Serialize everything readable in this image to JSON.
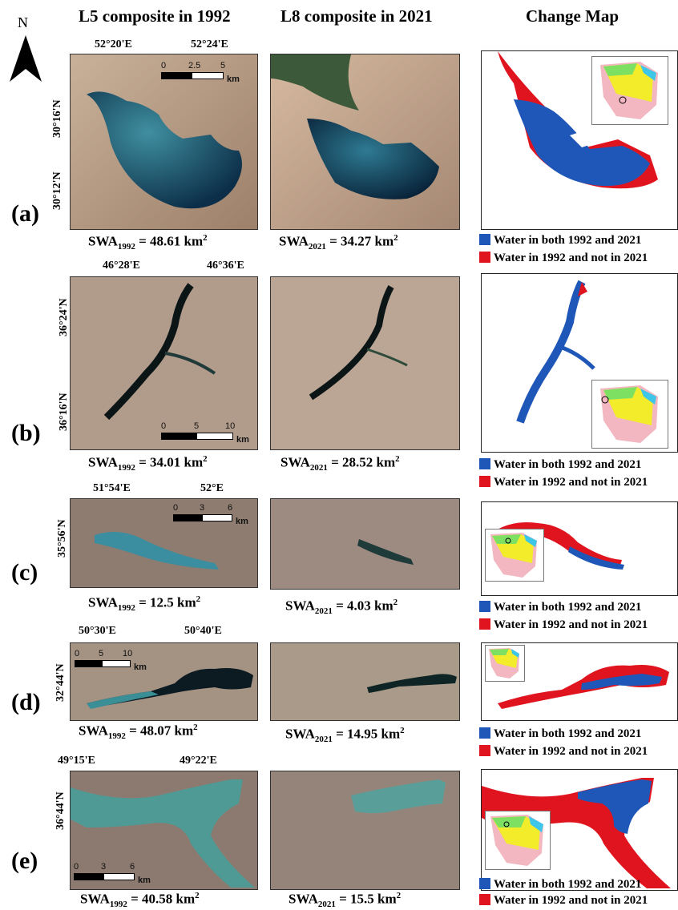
{
  "headers": {
    "col1": "L5 composite in 1992",
    "col2": "L8 composite in 2021",
    "col3": "Change Map"
  },
  "north": "N",
  "legend": {
    "both": "Water in both 1992 and 2021",
    "lost": "Water in 1992 and not in 2021"
  },
  "colors": {
    "both": "#1f57b8",
    "lost": "#e0141e"
  },
  "rows": [
    {
      "label": "(a)",
      "lon": [
        "52°20'E",
        "52°24'E"
      ],
      "lat": [
        "30°16'N",
        "30°12'N"
      ],
      "swa1992": {
        "prefix": "SWA",
        "sub": "1992",
        "val": " = 48.61 km",
        "sup": "2"
      },
      "swa2021": {
        "prefix": "SWA",
        "sub": "2021",
        "val": " = 34.27 km",
        "sup": "2"
      },
      "scale": [
        "0",
        "2.5",
        "5",
        "km"
      ]
    },
    {
      "label": "(b)",
      "lon": [
        "46°28'E",
        "46°36'E"
      ],
      "lat": [
        "36°24'N",
        "36°16'N"
      ],
      "swa1992": {
        "prefix": "SWA",
        "sub": "1992",
        "val": " = 34.01 km",
        "sup": "2"
      },
      "swa2021": {
        "prefix": "SWA",
        "sub": "2021",
        "val": " = 28.52 km",
        "sup": "2"
      },
      "scale": [
        "0",
        "5",
        "10",
        "km"
      ]
    },
    {
      "label": "(c)",
      "lon": [
        "51°54'E",
        "52°E"
      ],
      "lat": [
        "35°56'N"
      ],
      "swa1992": {
        "prefix": "SWA",
        "sub": "1992",
        "val": " = 12.5 km",
        "sup": "2"
      },
      "swa2021": {
        "prefix": "SWA",
        "sub": "2021",
        "val": " = 4.03 km",
        "sup": "2"
      },
      "scale": [
        "0",
        "3",
        "6",
        "km"
      ]
    },
    {
      "label": "(d)",
      "lon": [
        "50°30'E",
        "50°40'E"
      ],
      "lat": [
        "32°44'N"
      ],
      "swa1992": {
        "prefix": "SWA",
        "sub": "1992",
        "val": " = 48.07 km",
        "sup": "2"
      },
      "swa2021": {
        "prefix": "SWA",
        "sub": "2021",
        "val": " = 14.95 km",
        "sup": "2"
      },
      "scale": [
        "0",
        "5",
        "10",
        "km"
      ]
    },
    {
      "label": "(e)",
      "lon": [
        "49°15'E",
        "49°22'E"
      ],
      "lat": [
        "36°44'N"
      ],
      "swa1992": {
        "prefix": "SWA",
        "sub": "1992",
        "val": " = 40.58 km",
        "sup": "2"
      },
      "swa2021": {
        "prefix": "SWA",
        "sub": "2021",
        "val": " = 15.5 km",
        "sup": "2"
      },
      "scale": [
        "0",
        "3",
        "6",
        "km"
      ]
    }
  ]
}
